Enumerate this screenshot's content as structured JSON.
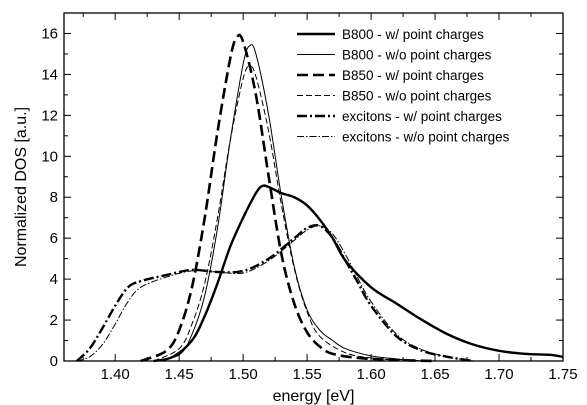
{
  "chart_data": {
    "type": "line",
    "title": "",
    "xlabel": "energy [eV]",
    "ylabel": "Normalized DOS  [a.u.]",
    "xlim": [
      1.36,
      1.75
    ],
    "ylim": [
      0,
      17
    ],
    "x_ticks": [
      1.4,
      1.45,
      1.5,
      1.55,
      1.6,
      1.65,
      1.7,
      1.75
    ],
    "x_tick_labels": [
      "1.40",
      "1.45",
      "1.50",
      "1.55",
      "1.60",
      "1.65",
      "1.70",
      "1.75"
    ],
    "y_ticks": [
      0,
      2,
      4,
      6,
      8,
      10,
      12,
      14,
      16
    ],
    "y_tick_labels": [
      "0",
      "2",
      "4",
      "6",
      "8",
      "10",
      "12",
      "14",
      "16"
    ],
    "grid": false,
    "legend": {
      "placement": "top-right"
    },
    "series": [
      {
        "name": "B800 - w/ point charges",
        "style": "solid-thick",
        "x": [
          1.43,
          1.445,
          1.46,
          1.47,
          1.48,
          1.49,
          1.5,
          1.51,
          1.515,
          1.52,
          1.53,
          1.54,
          1.55,
          1.56,
          1.57,
          1.58,
          1.6,
          1.62,
          1.64,
          1.66,
          1.68,
          1.7,
          1.72,
          1.74,
          1.75
        ],
        "y": [
          0,
          0.2,
          1.0,
          2.2,
          3.8,
          5.6,
          7.0,
          8.2,
          8.55,
          8.5,
          8.2,
          8.0,
          7.6,
          6.9,
          6.0,
          4.9,
          3.6,
          2.8,
          2.0,
          1.3,
          0.8,
          0.5,
          0.35,
          0.3,
          0.2
        ]
      },
      {
        "name": "B800 - w/o point charges",
        "style": "solid-thin",
        "x": [
          1.43,
          1.45,
          1.46,
          1.47,
          1.48,
          1.49,
          1.5,
          1.505,
          1.51,
          1.52,
          1.53,
          1.54,
          1.55,
          1.56,
          1.57,
          1.58,
          1.6,
          1.62,
          1.64
        ],
        "y": [
          0,
          0.3,
          1.3,
          3.2,
          6.5,
          10.8,
          14.5,
          15.4,
          15.0,
          12.0,
          8.0,
          4.6,
          2.5,
          1.5,
          1.0,
          0.6,
          0.25,
          0.1,
          0
        ]
      },
      {
        "name": "B850 - w/ point charges",
        "style": "dashed-thick",
        "x": [
          1.42,
          1.44,
          1.45,
          1.46,
          1.47,
          1.48,
          1.49,
          1.495,
          1.5,
          1.51,
          1.52,
          1.53,
          1.54,
          1.55,
          1.56,
          1.57,
          1.59,
          1.62,
          1.65
        ],
        "y": [
          0,
          0.5,
          1.5,
          3.6,
          7.0,
          11.2,
          14.8,
          15.8,
          15.6,
          13.0,
          9.0,
          5.2,
          2.8,
          1.4,
          0.7,
          0.35,
          0.15,
          0.05,
          0
        ]
      },
      {
        "name": "B850 - w/o point charges",
        "style": "dashed-thin",
        "x": [
          1.43,
          1.45,
          1.46,
          1.47,
          1.48,
          1.49,
          1.5,
          1.505,
          1.51,
          1.52,
          1.53,
          1.54,
          1.55,
          1.56,
          1.58,
          1.6,
          1.62,
          1.65
        ],
        "y": [
          0,
          0.6,
          1.8,
          3.8,
          7.0,
          10.8,
          13.8,
          14.4,
          13.9,
          11.2,
          7.6,
          4.5,
          2.4,
          1.2,
          0.4,
          0.15,
          0.05,
          0
        ]
      },
      {
        "name": "excitons - w/ point charges",
        "style": "dashdot-thick",
        "x": [
          1.37,
          1.38,
          1.39,
          1.4,
          1.41,
          1.42,
          1.44,
          1.46,
          1.48,
          1.5,
          1.52,
          1.54,
          1.55,
          1.56,
          1.57,
          1.58,
          1.59,
          1.6,
          1.62,
          1.64,
          1.66,
          1.68
        ],
        "y": [
          0,
          0.6,
          1.6,
          2.7,
          3.6,
          3.9,
          4.2,
          4.45,
          4.35,
          4.4,
          5.0,
          6.0,
          6.5,
          6.6,
          6.0,
          4.9,
          3.8,
          2.7,
          1.2,
          0.5,
          0.2,
          0
        ]
      },
      {
        "name": "excitons - w/o point charges",
        "style": "dashdot-thin",
        "x": [
          1.37,
          1.38,
          1.39,
          1.4,
          1.41,
          1.42,
          1.44,
          1.46,
          1.48,
          1.5,
          1.52,
          1.54,
          1.55,
          1.56,
          1.57,
          1.58,
          1.59,
          1.6,
          1.62,
          1.64,
          1.66,
          1.68
        ],
        "y": [
          0,
          0.2,
          0.8,
          1.8,
          2.9,
          3.6,
          4.1,
          4.4,
          4.35,
          4.3,
          4.9,
          5.9,
          6.4,
          6.6,
          6.2,
          5.2,
          4.0,
          2.9,
          1.3,
          0.55,
          0.2,
          0
        ]
      }
    ]
  }
}
